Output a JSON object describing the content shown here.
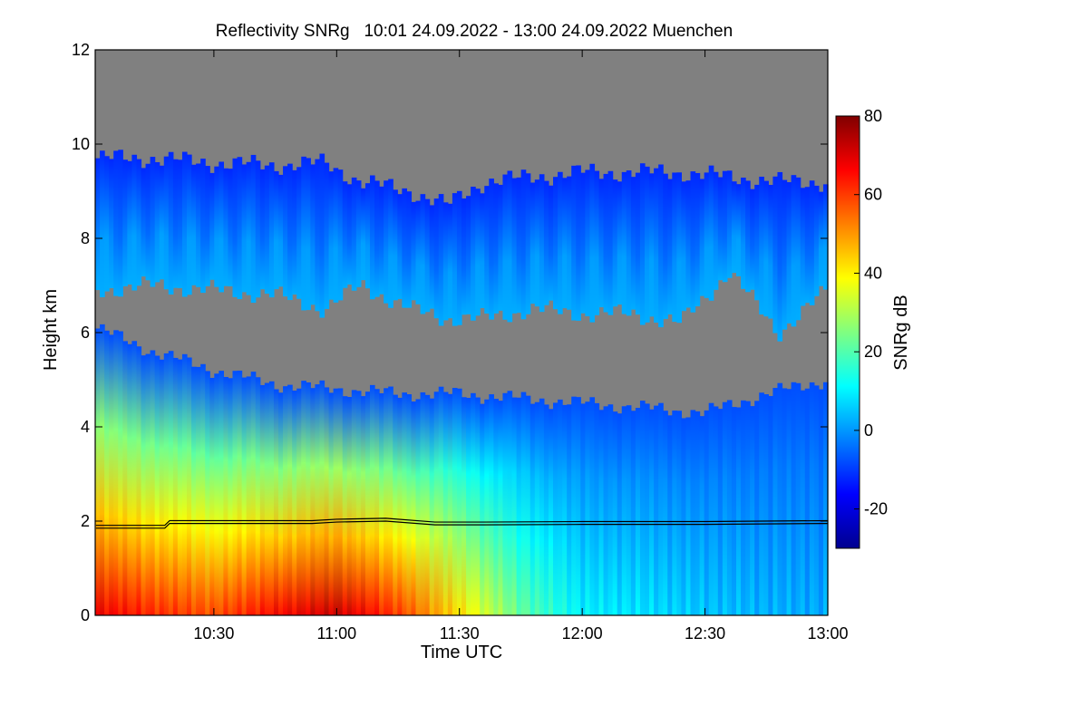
{
  "chart_data": {
    "type": "heatmap",
    "title": "Reflectivity SNRg   10:01 24.09.2022 - 13:00 24.09.2022 Muenchen",
    "xlabel": "Time UTC",
    "ylabel": "Height km",
    "colorbar_label": "SNRg dB",
    "xlim": [
      10.0167,
      13.0
    ],
    "ylim": [
      0,
      12
    ],
    "x_ticks": [
      {
        "value": 10.5,
        "label": "10:30"
      },
      {
        "value": 11.0,
        "label": "11:00"
      },
      {
        "value": 11.5,
        "label": "11:30"
      },
      {
        "value": 12.0,
        "label": "12:00"
      },
      {
        "value": 12.5,
        "label": "12:30"
      },
      {
        "value": 13.0,
        "label": "13:00"
      }
    ],
    "y_ticks": [
      {
        "value": 0,
        "label": "0"
      },
      {
        "value": 2,
        "label": "2"
      },
      {
        "value": 4,
        "label": "4"
      },
      {
        "value": 6,
        "label": "6"
      },
      {
        "value": 8,
        "label": "8"
      },
      {
        "value": 10,
        "label": "10"
      },
      {
        "value": 12,
        "label": "12"
      }
    ],
    "colorbar_range": [
      -30,
      80
    ],
    "colorbar_ticks": [
      {
        "value": -20,
        "label": "-20"
      },
      {
        "value": 0,
        "label": "0"
      },
      {
        "value": 20,
        "label": "20"
      },
      {
        "value": 40,
        "label": "40"
      },
      {
        "value": 60,
        "label": "60"
      },
      {
        "value": 80,
        "label": "80"
      }
    ],
    "no_signal_color": "#808080",
    "colormap": [
      "#00008f",
      "#0000ff",
      "#0080ff",
      "#00ffff",
      "#80ff80",
      "#ffff00",
      "#ff8000",
      "#ff0000",
      "#800000"
    ],
    "cloud_layers": [
      {
        "name": "upper-cloud",
        "times": [
          10.02,
          10.25,
          10.5,
          10.75,
          10.95,
          11.1,
          11.3,
          11.45,
          11.6,
          11.8,
          12.0,
          12.2,
          12.4,
          12.6,
          12.8,
          13.0
        ],
        "top_km": [
          9.7,
          9.7,
          9.6,
          9.55,
          9.6,
          9.2,
          9.0,
          8.7,
          9.2,
          9.3,
          9.4,
          9.4,
          9.4,
          9.3,
          9.2,
          9.2
        ],
        "base_km": [
          6.9,
          7.0,
          6.9,
          6.8,
          6.5,
          7.0,
          6.5,
          6.3,
          6.3,
          6.5,
          6.4,
          6.4,
          6.2,
          7.3,
          6.0,
          6.9
        ],
        "snr_top_db": -12,
        "snr_base_db": 8
      },
      {
        "name": "lower-precipitation",
        "times": [
          10.02,
          10.25,
          10.5,
          10.75,
          11.0,
          11.25,
          11.5,
          11.75,
          12.0,
          12.25,
          12.5,
          12.75,
          13.0
        ],
        "top_km": [
          6.1,
          5.6,
          5.2,
          4.9,
          4.8,
          4.7,
          4.7,
          4.6,
          4.5,
          4.4,
          4.3,
          4.7,
          5.0
        ],
        "surface_snr_db": [
          68,
          62,
          58,
          66,
          72,
          60,
          42,
          22,
          10,
          8,
          5,
          3,
          2
        ],
        "snr_top_db": -8
      }
    ],
    "mixing_layer_line": {
      "times": [
        10.02,
        10.3,
        10.32,
        10.7,
        10.9,
        11.0,
        11.2,
        11.4,
        11.6,
        12.0,
        12.5,
        13.0
      ],
      "height_km": [
        1.85,
        1.85,
        1.95,
        1.95,
        1.95,
        1.98,
        2.0,
        1.92,
        1.92,
        1.93,
        1.93,
        1.95
      ]
    }
  }
}
